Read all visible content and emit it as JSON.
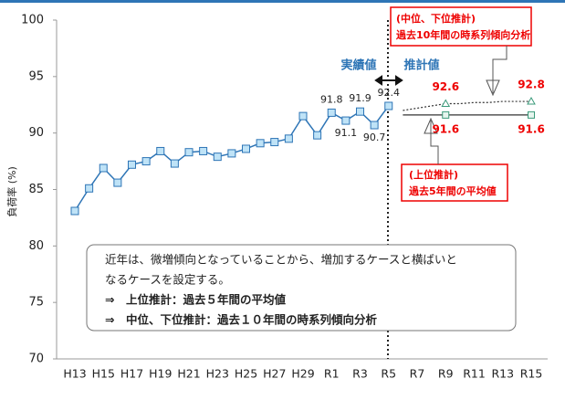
{
  "chart_data": {
    "type": "line",
    "y_label": "負荷率 (%)",
    "categories": [
      "H13",
      null,
      "H15",
      null,
      "H17",
      null,
      "H19",
      null,
      "H21",
      null,
      "H23",
      null,
      "H25",
      null,
      "H27",
      null,
      "H29",
      null,
      "R1",
      null,
      "R3",
      null,
      "R5",
      null,
      "R7",
      null,
      "R9",
      null,
      "R11",
      null,
      "R13",
      null,
      "R15"
    ],
    "series": [
      {
        "color": "#2e75b6",
        "values": [
          83.1,
          85.1,
          86.9,
          85.6,
          87.2,
          87.5,
          88.4,
          87.3,
          88.3,
          88.4,
          87.9,
          88.2,
          88.6,
          89.1,
          89.2,
          89.5,
          91.5,
          89.8,
          91.8,
          91.1,
          91.9,
          90.7,
          92.4,
          null,
          null,
          null,
          null,
          null,
          null,
          null,
          null,
          null,
          null
        ]
      },
      {
        "color": "#333333",
        "values": [
          null,
          null,
          null,
          null,
          null,
          null,
          null,
          null,
          null,
          null,
          null,
          null,
          null,
          null,
          null,
          null,
          null,
          null,
          null,
          null,
          null,
          null,
          null,
          91.6,
          91.6,
          91.6,
          91.6,
          91.6,
          91.6,
          91.6,
          91.6,
          91.6,
          91.6
        ]
      },
      {
        "color": "#333333",
        "values": [
          null,
          null,
          null,
          null,
          null,
          null,
          null,
          null,
          null,
          null,
          null,
          null,
          null,
          null,
          null,
          null,
          null,
          null,
          null,
          null,
          null,
          null,
          null,
          92.0,
          92.2,
          92.4,
          92.6,
          92.6,
          92.7,
          92.7,
          92.8,
          92.8,
          92.8
        ]
      }
    ],
    "ylim": [
      70,
      100
    ],
    "yticks": [
      70,
      75,
      80,
      85,
      90,
      95,
      100
    ],
    "grid": false,
    "annotations": {
      "actual": "実績値",
      "forecast": "推計値",
      "mid_box": [
        "(中位、下位推計)",
        "過去10年間の時系列傾向分析"
      ],
      "upper_box": [
        "(上位推計)",
        "過去5年間の平均値"
      ],
      "note": [
        "近年は、微増傾向となっていることから、増加するケースと横ばいと",
        "なるケースを設定する。",
        "⇒　上位推計：過去５年間の平均値",
        "⇒　中位、下位推計：過去１０年間の時系列傾向分析"
      ]
    }
  }
}
